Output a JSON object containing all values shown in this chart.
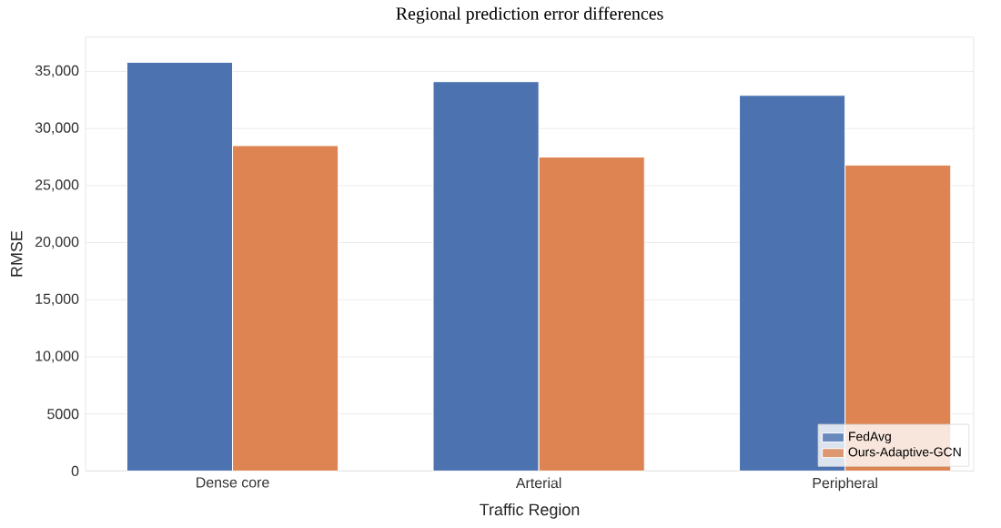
{
  "chart_data": {
    "type": "bar",
    "title": "Regional prediction error differences",
    "xlabel": "Traffic Region",
    "ylabel": "RMSE",
    "categories": [
      "Dense core",
      "Arterial",
      "Peripheral"
    ],
    "series": [
      {
        "name": "FedAvg",
        "color": "#4c72b0",
        "values": [
          35800,
          34100,
          32900
        ]
      },
      {
        "name": "Ours-Adaptive-GCN",
        "color": "#dd8452",
        "values": [
          28500,
          27500,
          26800
        ]
      }
    ],
    "ylim": [
      0,
      38000
    ],
    "yticks": [
      0,
      5000,
      {
        "value": 10000,
        "label": "10,000"
      },
      {
        "value": 15000,
        "label": "15,000"
      },
      {
        "value": 20000,
        "label": "20,000"
      },
      {
        "value": 25000,
        "label": "25,000"
      },
      {
        "value": 30000,
        "label": "30,000"
      },
      {
        "value": 35000,
        "label": "35,000"
      }
    ],
    "grid": "y",
    "legend": "bottom right"
  }
}
